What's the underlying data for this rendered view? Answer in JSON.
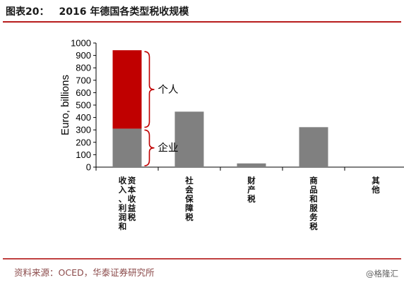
{
  "header": {
    "prefix": "图表20：",
    "text": "2016 年德国各类型税收规模",
    "accent_color": "#b71c1c"
  },
  "footer": {
    "source": "资料来源：OCED，华泰证券研究所",
    "watermark": "@格隆汇",
    "source_color": "#8b4a4a"
  },
  "chart_data": {
    "type": "bar",
    "stacked": true,
    "ylabel": "Euro, billions",
    "ylim": [
      0,
      1000
    ],
    "yticks": [
      0,
      100,
      200,
      300,
      400,
      500,
      600,
      700,
      800,
      900,
      1000
    ],
    "grid": false,
    "categories": [
      "收入、利润和资本收益税",
      "社会保障税",
      "财产税",
      "商品和服务税",
      "其他"
    ],
    "category_lines": [
      [
        "收入、利润和",
        "资本收益税"
      ],
      [
        "社会保障税"
      ],
      [
        "财产税"
      ],
      [
        "商品和服务税"
      ],
      [
        "其他"
      ]
    ],
    "series": [
      {
        "name": "企业",
        "values": [
          310,
          447,
          30,
          322,
          0
        ],
        "color": "#808080"
      },
      {
        "name": "个人",
        "values": [
          632,
          0,
          0,
          0,
          0
        ],
        "color": "#c00000"
      }
    ],
    "annotations": [
      {
        "text": "个人",
        "series": "个人",
        "category_index": 0
      },
      {
        "text": "企业",
        "series": "企业",
        "category_index": 0
      }
    ],
    "brace_color": "#c00000"
  }
}
